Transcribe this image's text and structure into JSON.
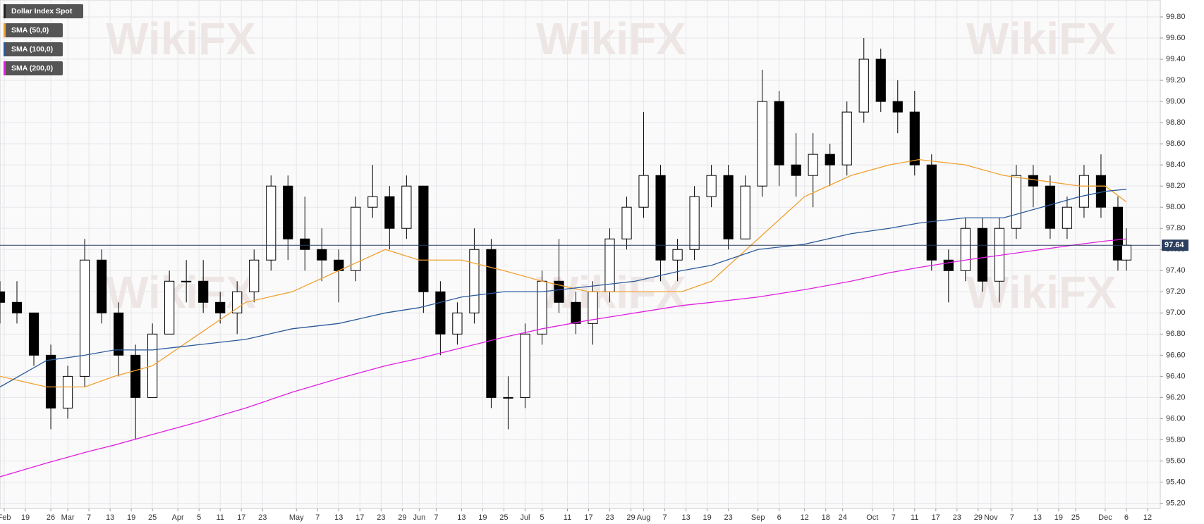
{
  "chart_data": {
    "type": "candlestick",
    "watermark": "WikiFX",
    "last_price": 97.64,
    "xlim": [
      0,
      274
    ],
    "ylim": [
      95.15,
      99.96
    ],
    "grid": true,
    "legend": "top-left",
    "yticks": [
      {
        "value": 95.2,
        "label": "95.20"
      },
      {
        "value": 95.4,
        "label": "95.40"
      },
      {
        "value": 95.6,
        "label": "95.60"
      },
      {
        "value": 95.8,
        "label": "95.80"
      },
      {
        "value": 96.0,
        "label": "96.00"
      },
      {
        "value": 96.2,
        "label": "96.20"
      },
      {
        "value": 96.4,
        "label": "96.40"
      },
      {
        "value": 96.6,
        "label": "96.60"
      },
      {
        "value": 96.8,
        "label": "96.80"
      },
      {
        "value": 97.0,
        "label": "97.00"
      },
      {
        "value": 97.2,
        "label": "97.20"
      },
      {
        "value": 97.4,
        "label": "97.40"
      },
      {
        "value": 97.6,
        "label": "97.60"
      },
      {
        "value": 97.8,
        "label": "97.80"
      },
      {
        "value": 98.0,
        "label": "98.00"
      },
      {
        "value": 98.2,
        "label": "98.20"
      },
      {
        "value": 98.4,
        "label": "98.40"
      },
      {
        "value": 98.6,
        "label": "98.60"
      },
      {
        "value": 98.8,
        "label": "98.80"
      },
      {
        "value": 99.0,
        "label": "99.00"
      },
      {
        "value": 99.2,
        "label": "99.20"
      },
      {
        "value": 99.4,
        "label": "99.40"
      },
      {
        "value": 99.6,
        "label": "99.60"
      },
      {
        "value": 99.8,
        "label": "99.80"
      }
    ],
    "xticks": [
      {
        "value": 1,
        "label": "Feb"
      },
      {
        "value": 6,
        "label": "19"
      },
      {
        "value": 12,
        "label": "26"
      },
      {
        "value": 16,
        "label": "Mar"
      },
      {
        "value": 21,
        "label": "7"
      },
      {
        "value": 26,
        "label": "13"
      },
      {
        "value": 31,
        "label": "19"
      },
      {
        "value": 36,
        "label": "25"
      },
      {
        "value": 42,
        "label": "Apr"
      },
      {
        "value": 47,
        "label": "5"
      },
      {
        "value": 52,
        "label": "11"
      },
      {
        "value": 57,
        "label": "17"
      },
      {
        "value": 62,
        "label": "23"
      },
      {
        "value": 70,
        "label": "May"
      },
      {
        "value": 75,
        "label": "7"
      },
      {
        "value": 80,
        "label": "13"
      },
      {
        "value": 85,
        "label": "17"
      },
      {
        "value": 90,
        "label": "23"
      },
      {
        "value": 95,
        "label": "29"
      },
      {
        "value": 99,
        "label": "Jun"
      },
      {
        "value": 103,
        "label": "7"
      },
      {
        "value": 109,
        "label": "13"
      },
      {
        "value": 114,
        "label": "19"
      },
      {
        "value": 119,
        "label": "25"
      },
      {
        "value": 124,
        "label": "Jul"
      },
      {
        "value": 128,
        "label": "5"
      },
      {
        "value": 134,
        "label": "11"
      },
      {
        "value": 139,
        "label": "17"
      },
      {
        "value": 144,
        "label": "23"
      },
      {
        "value": 149,
        "label": "29"
      },
      {
        "value": 152,
        "label": "Aug"
      },
      {
        "value": 157,
        "label": "7"
      },
      {
        "value": 162,
        "label": "13"
      },
      {
        "value": 167,
        "label": "19"
      },
      {
        "value": 172,
        "label": "23"
      },
      {
        "value": 179,
        "label": "Sep"
      },
      {
        "value": 184,
        "label": "6"
      },
      {
        "value": 190,
        "label": "12"
      },
      {
        "value": 195,
        "label": "18"
      },
      {
        "value": 199,
        "label": "24"
      },
      {
        "value": 206,
        "label": "Oct"
      },
      {
        "value": 211,
        "label": "7"
      },
      {
        "value": 216,
        "label": "11"
      },
      {
        "value": 221,
        "label": "17"
      },
      {
        "value": 226,
        "label": "23"
      },
      {
        "value": 231,
        "label": "29"
      },
      {
        "value": 234,
        "label": "Nov"
      },
      {
        "value": 239,
        "label": "7"
      },
      {
        "value": 245,
        "label": "13"
      },
      {
        "value": 250,
        "label": "19"
      },
      {
        "value": 254,
        "label": "25"
      },
      {
        "value": 261,
        "label": "Dec"
      },
      {
        "value": 266,
        "label": "6"
      },
      {
        "value": 271,
        "label": "12"
      }
    ],
    "series": [
      {
        "name": "Dollar Index Spot",
        "type": "candle",
        "color": "#000000",
        "up_color": "#ffffff",
        "down_color": "#000000",
        "x": [
          0,
          4,
          8,
          12,
          16,
          20,
          24,
          28,
          32,
          36,
          40,
          44,
          48,
          52,
          56,
          60,
          64,
          68,
          72,
          76,
          80,
          84,
          88,
          92,
          96,
          100,
          104,
          108,
          112,
          116,
          120,
          124,
          128,
          132,
          136,
          140,
          144,
          148,
          152,
          156,
          160,
          164,
          168,
          172,
          176,
          180,
          184,
          188,
          192,
          196,
          200,
          204,
          208,
          212,
          216,
          220,
          224,
          228,
          232,
          236,
          240,
          244,
          248,
          252,
          256,
          260,
          264,
          266
        ],
        "open": [
          97.2,
          97.1,
          97.0,
          96.6,
          96.1,
          96.4,
          97.5,
          97.0,
          96.6,
          96.2,
          96.8,
          97.3,
          97.3,
          97.1,
          97.0,
          97.2,
          97.5,
          98.2,
          97.7,
          97.6,
          97.5,
          97.4,
          98.0,
          98.1,
          97.8,
          98.2,
          97.2,
          96.8,
          97.0,
          97.6,
          96.2,
          96.2,
          96.8,
          97.3,
          97.1,
          96.9,
          97.2,
          97.7,
          98.0,
          98.3,
          97.5,
          97.6,
          98.1,
          98.3,
          97.7,
          98.2,
          99.0,
          98.4,
          98.3,
          98.5,
          98.4,
          98.9,
          99.4,
          99.0,
          98.9,
          98.4,
          97.5,
          97.4,
          97.8,
          97.3,
          97.8,
          98.3,
          98.2,
          97.8,
          98.0,
          98.3,
          98.0,
          97.5
        ],
        "high": [
          97.3,
          97.3,
          97.0,
          96.7,
          96.5,
          97.7,
          97.6,
          97.1,
          96.7,
          96.9,
          97.4,
          97.5,
          97.5,
          97.2,
          97.3,
          97.6,
          98.3,
          98.3,
          98.1,
          97.8,
          97.6,
          98.1,
          98.4,
          98.2,
          98.3,
          98.2,
          97.3,
          97.1,
          97.8,
          97.7,
          96.4,
          96.9,
          97.4,
          97.7,
          97.2,
          97.3,
          97.8,
          98.1,
          98.9,
          98.4,
          97.7,
          98.2,
          98.4,
          98.4,
          98.3,
          99.3,
          99.1,
          98.7,
          98.7,
          98.6,
          99.0,
          99.6,
          99.5,
          99.2,
          99.1,
          98.5,
          97.6,
          97.9,
          97.9,
          97.9,
          98.4,
          98.4,
          98.3,
          98.1,
          98.4,
          98.5,
          98.1,
          97.8
        ],
        "low": [
          96.9,
          96.9,
          96.5,
          95.9,
          96.0,
          96.3,
          96.9,
          96.4,
          95.8,
          96.2,
          96.8,
          97.1,
          97.0,
          96.9,
          96.8,
          97.1,
          97.4,
          97.5,
          97.4,
          97.3,
          97.1,
          97.3,
          97.9,
          97.6,
          97.7,
          97.0,
          96.6,
          96.7,
          96.9,
          96.1,
          95.9,
          96.1,
          96.7,
          97.0,
          96.8,
          96.7,
          97.1,
          97.6,
          97.9,
          97.3,
          97.3,
          97.5,
          98.0,
          97.6,
          97.7,
          98.1,
          98.2,
          98.1,
          98.0,
          98.2,
          98.3,
          98.8,
          98.9,
          98.7,
          98.3,
          97.4,
          97.1,
          97.3,
          97.2,
          97.1,
          97.7,
          98.0,
          97.7,
          97.7,
          97.9,
          97.9,
          97.4,
          97.4
        ],
        "close": [
          97.1,
          97.0,
          96.6,
          96.1,
          96.4,
          97.5,
          97.0,
          96.6,
          96.2,
          96.8,
          97.3,
          97.3,
          97.1,
          97.0,
          97.2,
          97.5,
          98.2,
          97.7,
          97.6,
          97.5,
          97.4,
          98.0,
          98.1,
          97.8,
          98.2,
          97.2,
          96.8,
          97.0,
          97.6,
          96.2,
          96.2,
          96.8,
          97.3,
          97.1,
          96.9,
          97.2,
          97.7,
          98.0,
          98.3,
          97.5,
          97.6,
          98.1,
          98.3,
          97.7,
          98.2,
          99.0,
          98.4,
          98.3,
          98.5,
          98.4,
          98.9,
          99.4,
          99.0,
          98.9,
          98.4,
          97.5,
          97.4,
          97.8,
          97.3,
          97.8,
          98.3,
          98.2,
          97.8,
          98.0,
          98.3,
          98.0,
          97.5,
          97.64
        ]
      },
      {
        "name": "SMA (50,0)",
        "type": "line",
        "color": "#f0a030",
        "x": [
          0,
          11,
          20,
          27,
          36,
          47,
          58,
          69,
          80,
          91,
          99,
          109,
          119,
          128,
          139,
          150,
          161,
          168,
          179,
          190,
          201,
          210,
          217,
          228,
          237,
          246,
          255,
          261,
          266
        ],
        "values": [
          96.4,
          96.3,
          96.3,
          96.4,
          96.5,
          96.8,
          97.1,
          97.2,
          97.4,
          97.6,
          97.5,
          97.5,
          97.4,
          97.3,
          97.2,
          97.2,
          97.2,
          97.3,
          97.7,
          98.1,
          98.3,
          98.4,
          98.45,
          98.4,
          98.3,
          98.25,
          98.2,
          98.2,
          98.05
        ]
      },
      {
        "name": "SMA (100,0)",
        "type": "line",
        "color": "#2a5a9a",
        "x": [
          0,
          11,
          20,
          27,
          36,
          47,
          58,
          69,
          80,
          91,
          99,
          109,
          119,
          128,
          139,
          150,
          161,
          168,
          179,
          190,
          201,
          210,
          217,
          228,
          237,
          246,
          255,
          261,
          266
        ],
        "values": [
          96.3,
          96.55,
          96.6,
          96.65,
          96.65,
          96.7,
          96.75,
          96.85,
          96.9,
          97.0,
          97.05,
          97.15,
          97.2,
          97.2,
          97.25,
          97.3,
          97.4,
          97.45,
          97.6,
          97.65,
          97.75,
          97.8,
          97.85,
          97.9,
          97.9,
          98.0,
          98.1,
          98.15,
          98.17
        ]
      },
      {
        "name": "SMA (200,0)",
        "type": "line",
        "color": "#e020e0",
        "x": [
          0,
          11,
          20,
          27,
          36,
          47,
          58,
          69,
          80,
          91,
          99,
          109,
          119,
          128,
          139,
          150,
          161,
          168,
          179,
          190,
          201,
          210,
          217,
          228,
          237,
          246,
          255,
          261,
          266
        ],
        "values": [
          95.45,
          95.58,
          95.68,
          95.75,
          95.85,
          95.97,
          96.1,
          96.25,
          96.38,
          96.5,
          96.57,
          96.67,
          96.77,
          96.85,
          96.93,
          97.0,
          97.07,
          97.1,
          97.15,
          97.22,
          97.3,
          97.38,
          97.43,
          97.5,
          97.55,
          97.6,
          97.65,
          97.68,
          97.7
        ]
      }
    ]
  }
}
